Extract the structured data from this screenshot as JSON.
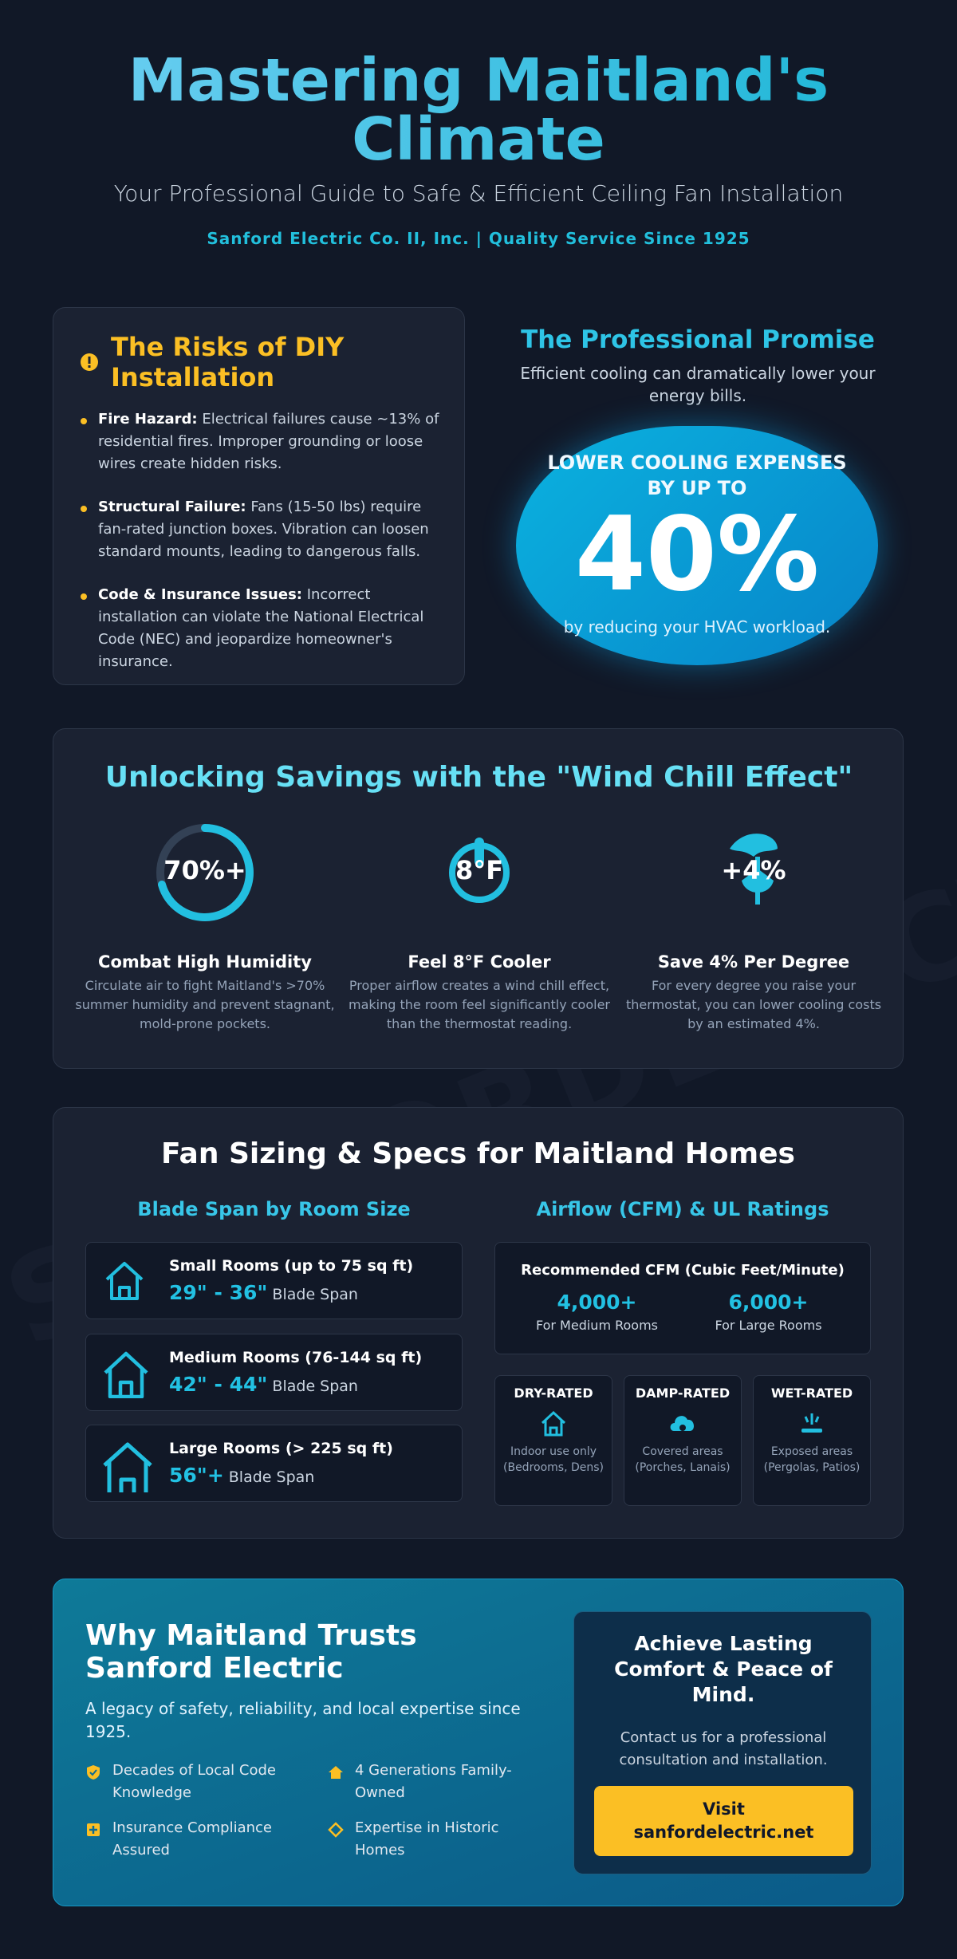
{
  "watermark": "SANFORDELECTRIC.NET",
  "header": {
    "title": "Mastering Maitland's Climate",
    "subtitle": "Your Professional Guide to Safe & Efficient Ceiling Fan Installation",
    "tagline": "Sanford Electric Co. II, Inc. | Quality Service Since 1925"
  },
  "risks": {
    "title": "The Risks of DIY Installation",
    "items": [
      {
        "label": "Fire Hazard:",
        "text": "Electrical failures cause ~13% of residential fires. Improper grounding or loose wires create hidden risks."
      },
      {
        "label": "Structural Failure:",
        "text": "Fans (15-50 lbs) require fan-rated junction boxes. Vibration can loosen standard mounts, leading to dangerous falls."
      },
      {
        "label": "Code & Insurance Issues:",
        "text": "Incorrect installation can violate the National Electrical Code (NEC) and jeopardize homeowner's insurance."
      }
    ]
  },
  "promise": {
    "title": "The Professional Promise",
    "text": "Efficient cooling can dramatically lower your energy bills.",
    "badge": {
      "headline": "LOWER COOLING EXPENSES BY UP TO",
      "figure": "40%",
      "note": "by reducing your HVAC workload."
    }
  },
  "wind_chill": {
    "title": "Unlocking Savings with the \"Wind Chill Effect\"",
    "cards": [
      {
        "icon_label": "70%+",
        "title": "Combat High Humidity",
        "text": "Circulate air to fight Maitland's >70% summer humidity and prevent stagnant, mold-prone pockets."
      },
      {
        "icon_label": "8°F",
        "title": "Feel 8°F Cooler",
        "text": "Proper airflow creates a wind chill effect, making the room feel significantly cooler than the thermostat reading."
      },
      {
        "icon_label": "+4%",
        "title": "Save 4% Per Degree",
        "text": "For every degree you raise your thermostat, you can lower cooling costs by an estimated 4%."
      }
    ]
  },
  "sizing": {
    "title": "Fan Sizing & Specs for Maitland Homes",
    "blade": {
      "title": "Blade Span by Room Size",
      "rooms": [
        {
          "name": "Small Rooms (up to 75 sq ft)",
          "span": "29\" - 36\"",
          "unit": "Blade Span"
        },
        {
          "name": "Medium Rooms (76-144 sq ft)",
          "span": "42\" - 44\"",
          "unit": "Blade Span"
        },
        {
          "name": "Large Rooms (> 225 sq ft)",
          "span": "56\"+",
          "unit": "Blade Span"
        }
      ]
    },
    "airflow": {
      "title": "Airflow (CFM) & UL Ratings",
      "cfm_title": "Recommended CFM (Cubic Feet/Minute)",
      "cfm": [
        {
          "value": "4,000+",
          "label": "For Medium Rooms"
        },
        {
          "value": "6,000+",
          "label": "For Large Rooms"
        }
      ],
      "ratings": [
        {
          "name": "DRY-RATED",
          "text": "Indoor use only (Bedrooms, Dens)"
        },
        {
          "name": "DAMP-RATED",
          "text": "Covered areas (Porches, Lanais)"
        },
        {
          "name": "WET-RATED",
          "text": "Exposed areas (Pergolas, Patios)"
        }
      ]
    }
  },
  "trust": {
    "title": "Why Maitland Trusts Sanford Electric",
    "text": "A legacy of safety, reliability, and local expertise since 1925.",
    "points": [
      "Decades of Local Code Knowledge",
      "4 Generations Family-Owned",
      "Insurance Compliance Assured",
      "Expertise in Historic Homes"
    ],
    "cta": {
      "title": "Achieve Lasting Comfort & Peace of Mind.",
      "text": "Contact us for a professional consultation and installation.",
      "button": "Visit sanfordelectric.net"
    }
  }
}
